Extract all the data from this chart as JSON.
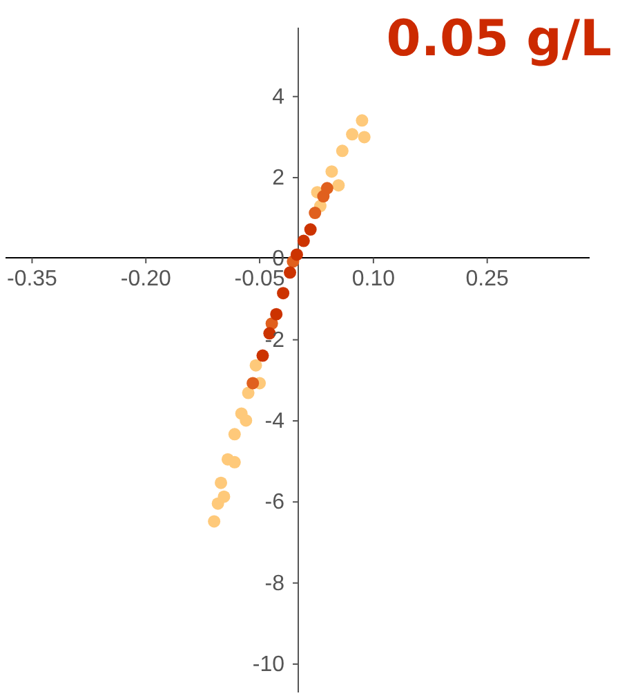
{
  "chart_data": {
    "type": "scatter",
    "title": "0.05 g/L",
    "marker": "circle",
    "xlim": [
      -0.385,
      0.385
    ],
    "ylim": [
      -10.7,
      5.7
    ],
    "xticks": [
      -0.35,
      {
        "value": -0.2,
        "label": "-0.20"
      },
      -0.05,
      {
        "value": 0.1,
        "label": "0.10"
      },
      0.25
    ],
    "yticks": [
      4,
      2,
      0,
      -2,
      -4,
      -6,
      -8,
      -10
    ],
    "series": [
      {
        "color": "#fec97a",
        "x": [
          -0.11,
          -0.105,
          -0.101,
          -0.092,
          -0.083,
          -0.074,
          -0.065,
          -0.055,
          0.026,
          0.03,
          0.045,
          0.054,
          0.059,
          0.072,
          0.085,
          0.088,
          -0.068,
          -0.083,
          -0.097,
          -0.05
        ],
        "values": [
          -6.48,
          -6.04,
          -5.53,
          -4.95,
          -4.33,
          -3.82,
          -3.31,
          -2.63,
          1.64,
          1.3,
          2.15,
          1.81,
          2.66,
          3.07,
          3.41,
          3.0,
          -3.99,
          -5.02,
          -5.87,
          -3.07
        ]
      },
      {
        "color": "#e0601e",
        "x": [
          -0.059,
          -0.034,
          -0.006,
          0.023,
          0.034,
          0.039
        ],
        "values": [
          -3.07,
          -1.6,
          -0.07,
          1.13,
          1.54,
          1.74
        ]
      },
      {
        "color": "#cc3300",
        "x": [
          -0.046,
          -0.037,
          -0.028,
          -0.019,
          -0.01,
          -0.001,
          0.008,
          0.017
        ],
        "values": [
          -2.39,
          -1.84,
          -1.37,
          -0.85,
          -0.34,
          0.1,
          0.44,
          0.72
        ]
      }
    ]
  }
}
